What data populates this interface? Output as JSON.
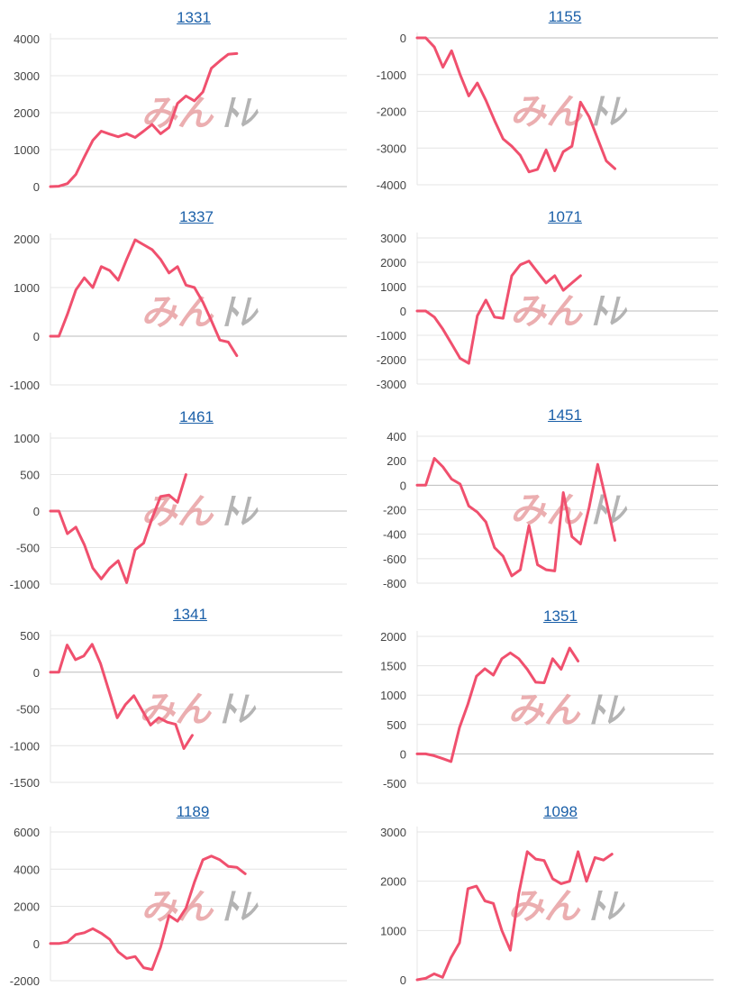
{
  "colors": {
    "line": "#f0506e",
    "grid": "#e4e4e4",
    "zero": "#bbbbbb",
    "link": "#1a5fa8"
  },
  "watermark": {
    "left": "みん",
    "right": "ﾄﾚ",
    "left_color": "#e8a0a3",
    "right_color": "#a8a8a8"
  },
  "chart_data": [
    {
      "type": "line",
      "title": "1331",
      "yticks": [
        0,
        1000,
        2000,
        3000,
        4000
      ],
      "ylim": [
        0,
        4000
      ],
      "values": [
        0,
        10,
        80,
        330,
        800,
        1250,
        1500,
        1420,
        1350,
        1430,
        1330,
        1500,
        1680,
        1430,
        1600,
        2250,
        2450,
        2320,
        2560,
        3200,
        3400,
        3580,
        3600
      ]
    },
    {
      "type": "line",
      "title": "1155",
      "yticks": [
        0,
        -1000,
        -2000,
        -3000,
        -4000
      ],
      "ylim": [
        -4000,
        0
      ],
      "values": [
        0,
        0,
        -250,
        -800,
        -350,
        -1000,
        -1580,
        -1230,
        -1700,
        -2250,
        -2750,
        -2950,
        -3200,
        -3650,
        -3580,
        -3050,
        -3620,
        -3100,
        -2950,
        -1750,
        -2150,
        -2750,
        -3350,
        -3560
      ]
    },
    {
      "type": "line",
      "title": "1337",
      "yticks": [
        2000,
        1000,
        0,
        -1000
      ],
      "ylim": [
        -1000,
        2000
      ],
      "values": [
        0,
        0,
        450,
        950,
        1200,
        1000,
        1430,
        1350,
        1150,
        1580,
        1980,
        1880,
        1780,
        1580,
        1300,
        1430,
        1050,
        1000,
        700,
        320,
        -80,
        -120,
        -400
      ]
    },
    {
      "type": "line",
      "title": "1071",
      "yticks": [
        3000,
        2000,
        1000,
        0,
        -1000,
        -2000,
        -3000
      ],
      "ylim": [
        -3000,
        3000
      ],
      "values": [
        0,
        0,
        -250,
        -750,
        -1350,
        -1950,
        -2150,
        -200,
        450,
        -250,
        -300,
        1450,
        1900,
        2050,
        1600,
        1150,
        1450,
        850,
        1150,
        1450
      ]
    },
    {
      "type": "line",
      "title": "1461",
      "yticks": [
        1000,
        500,
        0,
        -500,
        -1000
      ],
      "ylim": [
        -1000,
        1000
      ],
      "values": [
        0,
        0,
        -310,
        -220,
        -460,
        -780,
        -930,
        -780,
        -680,
        -980,
        -530,
        -440,
        -100,
        200,
        220,
        120,
        500
      ]
    },
    {
      "type": "line",
      "title": "1451",
      "yticks": [
        400,
        200,
        0,
        -200,
        -400,
        -600,
        -800
      ],
      "ylim": [
        -800,
        400
      ],
      "values": [
        0,
        0,
        220,
        150,
        50,
        10,
        -170,
        -220,
        -300,
        -510,
        -580,
        -740,
        -690,
        -330,
        -650,
        -690,
        -700,
        -60,
        -420,
        -480,
        -180,
        170,
        -130,
        -450
      ]
    },
    {
      "type": "line",
      "title": "1341",
      "yticks": [
        500,
        0,
        -500,
        -1000,
        -1500
      ],
      "ylim": [
        -1500,
        500
      ],
      "values": [
        0,
        0,
        370,
        170,
        220,
        380,
        120,
        -250,
        -620,
        -440,
        -320,
        -520,
        -720,
        -620,
        -680,
        -710,
        -1040,
        -860
      ]
    },
    {
      "type": "line",
      "title": "1351",
      "yticks": [
        2000,
        1500,
        1000,
        500,
        0,
        -500
      ],
      "ylim": [
        -500,
        2000
      ],
      "values": [
        0,
        0,
        -30,
        -80,
        -130,
        450,
        850,
        1320,
        1450,
        1340,
        1620,
        1720,
        1620,
        1440,
        1220,
        1210,
        1620,
        1440,
        1800,
        1580
      ]
    },
    {
      "type": "line",
      "title": "1189",
      "yticks": [
        6000,
        4000,
        2000,
        0,
        -2000
      ],
      "ylim": [
        -2000,
        6000
      ],
      "values": [
        0,
        0,
        80,
        480,
        580,
        800,
        550,
        220,
        -450,
        -800,
        -700,
        -1300,
        -1400,
        -200,
        1500,
        1200,
        1900,
        3300,
        4500,
        4700,
        4500,
        4150,
        4100,
        3750
      ]
    },
    {
      "type": "line",
      "title": "1098",
      "yticks": [
        3000,
        2000,
        1000,
        0
      ],
      "ylim": [
        0,
        3000
      ],
      "values": [
        0,
        30,
        120,
        50,
        450,
        750,
        1850,
        1900,
        1600,
        1550,
        1000,
        600,
        1750,
        2600,
        2450,
        2420,
        2050,
        1950,
        2000,
        2600,
        2000,
        2480,
        2430,
        2550
      ]
    }
  ]
}
